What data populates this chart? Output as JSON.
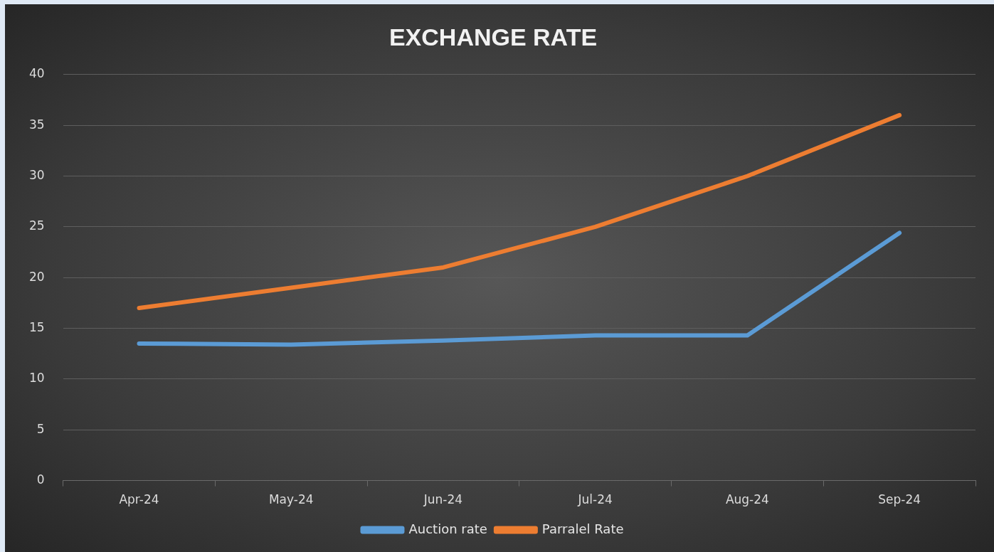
{
  "chart_data": {
    "type": "line",
    "title": "EXCHANGE RATE",
    "categories": [
      "Apr-24",
      "May-24",
      "Jun-24",
      "Jul-24",
      "Aug-24",
      "Sep-24"
    ],
    "series": [
      {
        "name": "Auction rate",
        "color": "#5b9bd5",
        "values": [
          13.5,
          13.4,
          13.8,
          14.3,
          14.3,
          24.4
        ]
      },
      {
        "name": "Parralel Rate",
        "color": "#ed7d31",
        "values": [
          17,
          19,
          21,
          25,
          30,
          36
        ]
      }
    ],
    "ylim": [
      0,
      40
    ],
    "yticks": [
      0,
      5,
      10,
      15,
      20,
      25,
      30,
      35,
      40
    ],
    "grid": "y",
    "legend": "bottom",
    "marker": "none",
    "line_style": "solid"
  }
}
